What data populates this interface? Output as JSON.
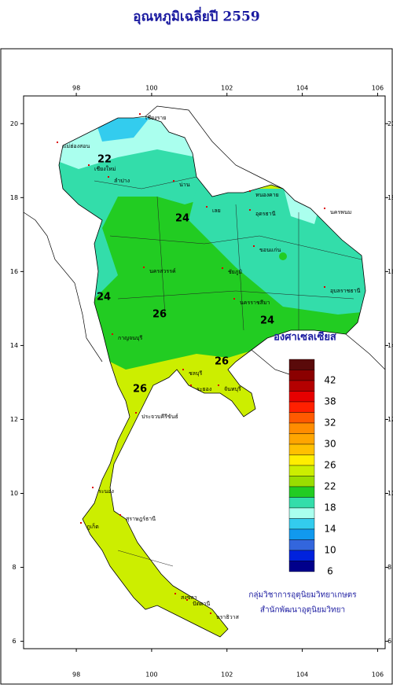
{
  "title": "อุณหภูมิเฉลี่ยปี 2559",
  "map": {
    "xlim": [
      96.6,
      106.2
    ],
    "ylim": [
      5.8,
      20.75
    ],
    "xticks": [
      98,
      100,
      102,
      104,
      106
    ],
    "yticks": [
      20,
      18,
      16,
      14,
      12,
      10,
      8,
      6
    ],
    "province_labels": [
      "เชียงราย",
      "แม่ฮ่องสอน",
      "เชียงใหม่",
      "ลำปาง",
      "น่าน",
      "เลย",
      "หนองคาย",
      "อุดรธานี",
      "นครพนม",
      "ขอนแก่น",
      "ชัยภูมิ",
      "นครราชสีมา",
      "อุบลราชธานี",
      "นครสวรรค์",
      "กาญจนบุรี",
      "ชลบุรี",
      "ระยอง",
      "จันทบุรี",
      "ประจวบคีรีขันธ์",
      "ระนอง",
      "สุราษฎร์ธานี",
      "ภูเก็ต",
      "สงขลา",
      "ปัตตานี",
      "นราธิวาส"
    ],
    "contour_labels": [
      "22",
      "24",
      "24",
      "24",
      "26",
      "26",
      "26"
    ]
  },
  "legend": {
    "unit": "องศาเซลเซียส",
    "labels": [
      "42",
      "38",
      "32",
      "30",
      "26",
      "22",
      "18",
      "14",
      "10",
      "6"
    ],
    "colors": [
      "#5a0a0a",
      "#8b0000",
      "#b40000",
      "#e60000",
      "#ff2000",
      "#ff5a00",
      "#ff8c00",
      "#ffa500",
      "#ffc000",
      "#ffee00",
      "#ccee00",
      "#99dd00",
      "#22cc22",
      "#33ddaa",
      "#aaffee",
      "#33ccee",
      "#1199ee",
      "#3366dd",
      "#0022dd",
      "#00008b"
    ]
  },
  "credits": [
    "กลุ่มวิชาการอุตุนิยมวิทยาเกษตร",
    "สำนักพัฒนาอุตุนิยมวิทยา"
  ]
}
